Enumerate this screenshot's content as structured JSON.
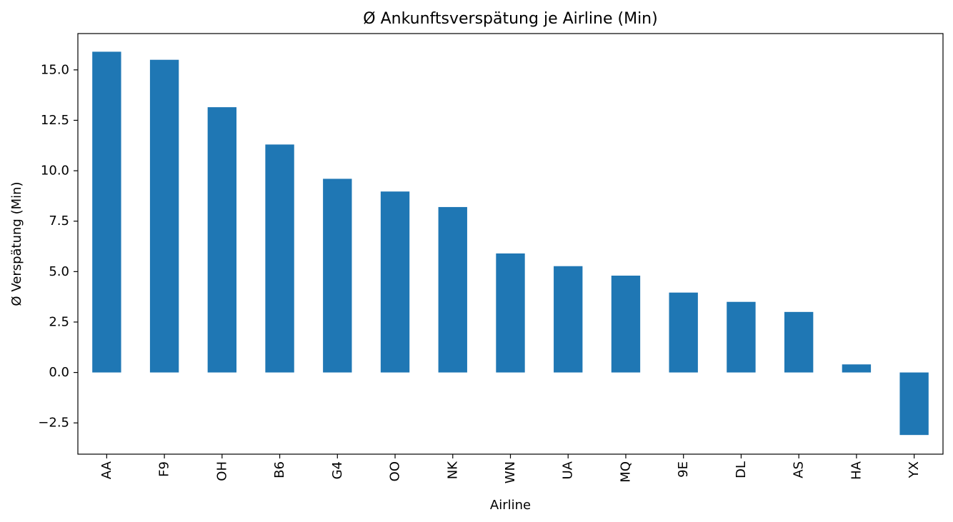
{
  "chart_data": {
    "type": "bar",
    "title": "Ø Ankunftsverspätung je Airline (Min)",
    "xlabel": "Airline",
    "ylabel": "Ø Verspätung (Min)",
    "categories": [
      "AA",
      "F9",
      "OH",
      "B6",
      "G4",
      "OO",
      "NK",
      "WN",
      "UA",
      "MQ",
      "9E",
      "DL",
      "AS",
      "HA",
      "YX"
    ],
    "values": [
      15.9,
      15.5,
      13.15,
      11.3,
      9.6,
      8.97,
      8.2,
      5.9,
      5.27,
      4.8,
      3.96,
      3.5,
      3.0,
      0.4,
      -3.1
    ],
    "ylim": [
      -4.05,
      16.8
    ],
    "yticks": [
      -2.5,
      0.0,
      2.5,
      5.0,
      7.5,
      10.0,
      12.5,
      15.0
    ],
    "ytick_labels": [
      "−2.5",
      "0.0",
      "2.5",
      "5.0",
      "7.5",
      "10.0",
      "12.5",
      "15.0"
    ],
    "grid": false,
    "legend": "none",
    "bar_color": "#1f77b4"
  }
}
